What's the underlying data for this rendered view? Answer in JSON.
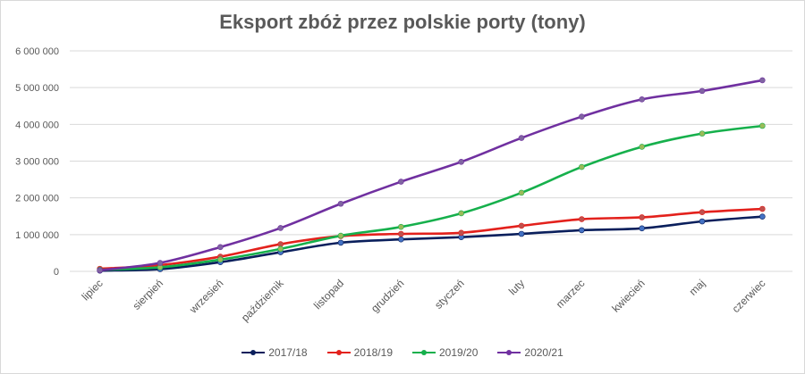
{
  "chart_data": {
    "type": "line",
    "title": "Eksport zbóż przez polskie porty (tony)",
    "xlabel": "",
    "ylabel": "",
    "ylim": [
      0,
      6000000
    ],
    "yticks": [
      0,
      1000000,
      2000000,
      3000000,
      4000000,
      5000000,
      6000000
    ],
    "ytick_labels": [
      "0",
      "1 000 000",
      "2 000 000",
      "3 000 000",
      "4 000 000",
      "5 000 000",
      "6 000 000"
    ],
    "grid": true,
    "legend_position": "bottom",
    "categories": [
      "lipiec",
      "sierpień",
      "wrzesień",
      "październik",
      "listopad",
      "grudzień",
      "styczeń",
      "luty",
      "marzec",
      "kwiecień",
      "maj",
      "czerwiec"
    ],
    "series": [
      {
        "name": "2017/18",
        "color": "#0a1f5c",
        "marker": "#4472c4",
        "values": [
          20000,
          60000,
          250000,
          520000,
          780000,
          870000,
          930000,
          1020000,
          1120000,
          1170000,
          1360000,
          1490000
        ]
      },
      {
        "name": "2018/19",
        "color": "#e3211c",
        "marker": "#c0504d",
        "values": [
          70000,
          170000,
          400000,
          740000,
          960000,
          1020000,
          1050000,
          1240000,
          1420000,
          1470000,
          1610000,
          1700000
        ]
      },
      {
        "name": "2019/20",
        "color": "#16b04c",
        "marker": "#9bbb59",
        "values": [
          40000,
          110000,
          320000,
          610000,
          970000,
          1210000,
          1580000,
          2140000,
          2840000,
          3390000,
          3750000,
          3960000
        ]
      },
      {
        "name": "2020/21",
        "color": "#7030a0",
        "marker": "#8064a2",
        "values": [
          30000,
          230000,
          660000,
          1180000,
          1840000,
          2440000,
          2980000,
          3630000,
          4210000,
          4680000,
          4910000,
          5200000
        ]
      }
    ]
  }
}
